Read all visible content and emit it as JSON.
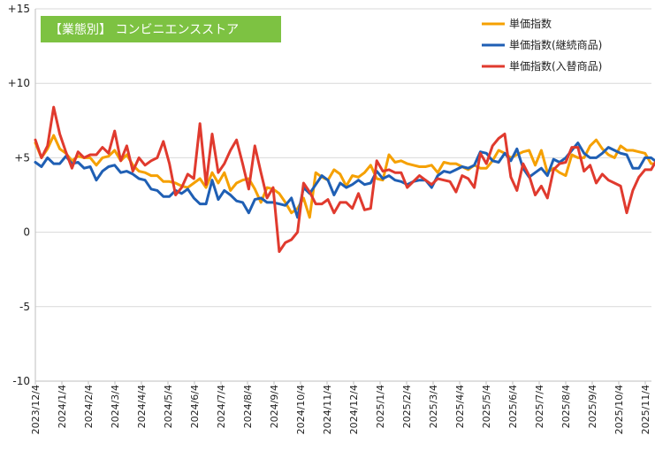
{
  "chart_data": {
    "type": "line",
    "title": "【業態別】 コンビニエンスストア",
    "title_bg": "#7dc242",
    "y_ticks": [
      "+15",
      "+10",
      "+5",
      "0",
      "-5",
      "-10"
    ],
    "y_tick_values": [
      15,
      10,
      5,
      0,
      -5,
      -10
    ],
    "ylim": [
      -10,
      15
    ],
    "x_tick_labels": [
      "2023/12/4",
      "2024/1/4",
      "2024/2/4",
      "2024/3/4",
      "2024/4/4",
      "2024/5/4",
      "2024/6/4",
      "2024/7/4",
      "2024/8/4",
      "2024/9/4",
      "2024/10/4",
      "2024/11/4",
      "2024/12/4",
      "2025/1/4",
      "2025/2/4",
      "2025/3/4",
      "2025/4/4",
      "2025/5/4",
      "2025/6/4",
      "2025/7/4",
      "2025/8/4",
      "2025/9/4",
      "2025/10/4",
      "2025/11/4"
    ],
    "points_per_month": 4.35,
    "legend_position": "top-right",
    "grid": "horizontal",
    "series": [
      {
        "name": "単価指数",
        "color": "#f5a000",
        "values": [
          6.0,
          5.0,
          5.6,
          6.5,
          5.6,
          5.3,
          4.8,
          5.1,
          5.0,
          5.0,
          4.5,
          5.0,
          5.1,
          5.5,
          4.8,
          5.2,
          4.5,
          4.1,
          4.0,
          3.8,
          3.8,
          3.4,
          3.4,
          3.3,
          3.1,
          3.0,
          3.3,
          3.6,
          3.0,
          4.0,
          3.3,
          4.0,
          2.8,
          3.3,
          3.5,
          3.6,
          2.9,
          2.0,
          3.0,
          2.9,
          2.6,
          2.0,
          1.3,
          1.6,
          2.3,
          1.0,
          4.0,
          3.7,
          3.5,
          4.2,
          3.9,
          3.1,
          3.8,
          3.7,
          4.0,
          4.5,
          3.6,
          3.5,
          5.2,
          4.7,
          4.8,
          4.6,
          4.5,
          4.4,
          4.4,
          4.5,
          4.0,
          4.7,
          4.6,
          4.6,
          4.4,
          4.2,
          4.5,
          4.3,
          4.3,
          4.8,
          5.5,
          5.3,
          5.0,
          5.2,
          5.4,
          5.5,
          4.5,
          5.5,
          4.0,
          4.3,
          4.0,
          3.8,
          5.2,
          5.0,
          5.0,
          5.8,
          6.2,
          5.6,
          5.2,
          5.0,
          5.8,
          5.5,
          5.5,
          5.4,
          5.3,
          4.6,
          4.6,
          5.3,
          5.2,
          5.3,
          5.5,
          5.0
        ]
      },
      {
        "name": "単価指数(継続商品)",
        "color": "#1f5fb4",
        "values": [
          4.7,
          4.4,
          5.0,
          4.6,
          4.6,
          5.1,
          4.6,
          4.7,
          4.3,
          4.4,
          3.5,
          4.1,
          4.4,
          4.5,
          4.0,
          4.1,
          3.9,
          3.6,
          3.5,
          2.9,
          2.8,
          2.4,
          2.4,
          2.8,
          2.6,
          2.9,
          2.3,
          1.9,
          1.9,
          3.5,
          2.2,
          2.8,
          2.5,
          2.1,
          2.0,
          1.3,
          2.2,
          2.3,
          2.0,
          2.0,
          1.9,
          1.8,
          2.3,
          1.0,
          3.0,
          2.6,
          3.2,
          3.8,
          3.5,
          2.5,
          3.3,
          3.0,
          3.2,
          3.5,
          3.2,
          3.3,
          4.1,
          3.6,
          3.8,
          3.5,
          3.4,
          3.2,
          3.4,
          3.5,
          3.5,
          3.0,
          3.8,
          4.1,
          4.0,
          4.2,
          4.4,
          4.3,
          4.5,
          5.4,
          5.3,
          4.8,
          4.7,
          5.3,
          4.8,
          5.6,
          4.3,
          3.7,
          4.0,
          4.3,
          3.8,
          4.9,
          4.7,
          5.0,
          5.5,
          6.0,
          5.3,
          5.0,
          5.0,
          5.3,
          5.7,
          5.5,
          5.3,
          5.2,
          4.3,
          4.3,
          5.0,
          5.0,
          4.7,
          5.0,
          4.5,
          4.1
        ]
      },
      {
        "name": "単価指数(入替商品)",
        "color": "#e03a2e",
        "values": [
          6.2,
          5.0,
          5.8,
          8.4,
          6.6,
          5.4,
          4.3,
          5.4,
          5.0,
          5.2,
          5.2,
          5.7,
          5.3,
          6.8,
          4.8,
          5.8,
          4.1,
          5.0,
          4.5,
          4.8,
          5.0,
          6.1,
          4.6,
          2.5,
          3.0,
          3.9,
          3.6,
          7.3,
          3.2,
          6.6,
          4.0,
          4.6,
          5.5,
          6.2,
          4.6,
          2.9,
          5.8,
          4.0,
          2.3,
          3.0,
          -1.3,
          -0.7,
          -0.5,
          0.0,
          3.3,
          2.7,
          1.9,
          1.9,
          2.2,
          1.3,
          2.0,
          2.0,
          1.6,
          2.6,
          1.5,
          1.6,
          4.8,
          4.1,
          4.2,
          4.0,
          4.0,
          3.0,
          3.4,
          3.8,
          3.5,
          3.2,
          3.6,
          3.5,
          3.4,
          2.7,
          3.8,
          3.6,
          3.0,
          5.3,
          4.6,
          5.8,
          6.3,
          6.6,
          3.7,
          2.8,
          4.6,
          3.8,
          2.5,
          3.1,
          2.3,
          4.2,
          4.6,
          4.7,
          5.7,
          5.7,
          4.1,
          4.5,
          3.3,
          3.9,
          3.5,
          3.3,
          3.1,
          1.3,
          2.8,
          3.7,
          4.2,
          4.2,
          4.9,
          4.8,
          4.9,
          4.9
        ]
      }
    ]
  }
}
